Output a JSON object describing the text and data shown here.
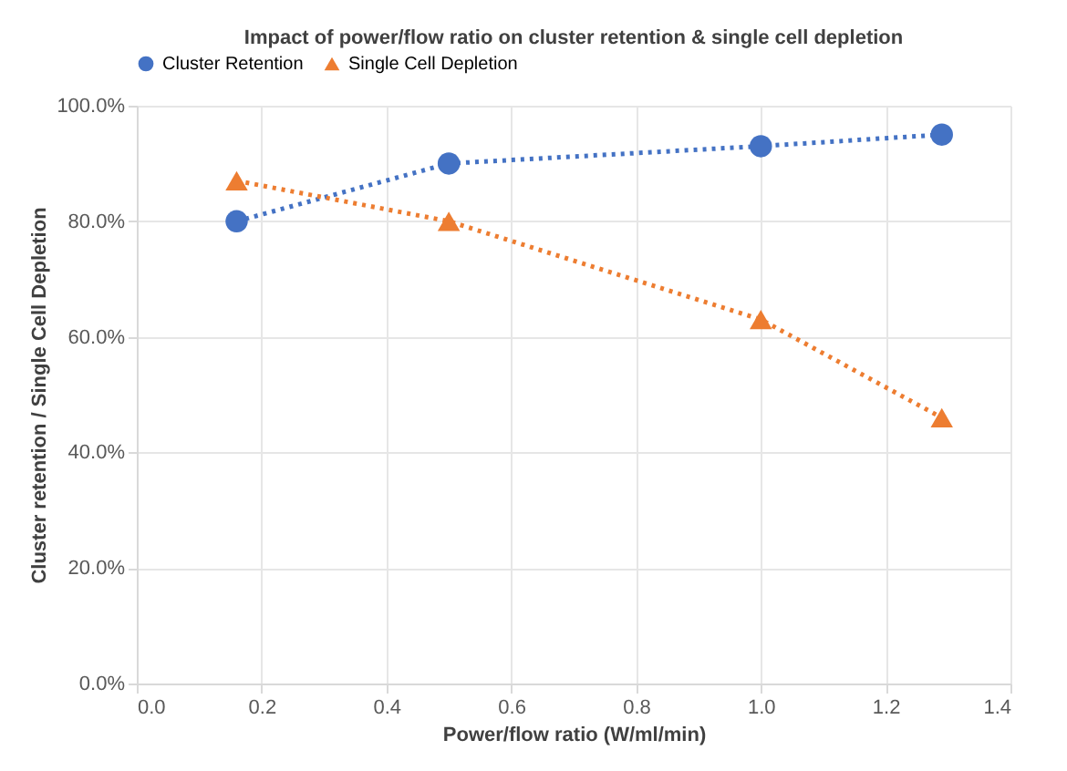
{
  "chart_data": {
    "type": "line",
    "title": "Impact of power/flow ratio on cluster retention & single cell depletion",
    "xlabel": "Power/flow ratio (W/ml/min)",
    "ylabel": "Cluster retention / Single Cell Depletion",
    "x": [
      0.16,
      0.5,
      1.0,
      1.29
    ],
    "series": [
      {
        "name": "Cluster Retention",
        "color": "#4472c4",
        "marker": "circle",
        "values": [
          80,
          90,
          93,
          95
        ]
      },
      {
        "name": "Single Cell Depletion",
        "color": "#ed7d31",
        "marker": "triangle",
        "values": [
          87,
          80,
          63,
          46
        ]
      }
    ],
    "xlim": [
      0,
      1.4
    ],
    "xticks": [
      {
        "value": 0,
        "label": "0.0"
      },
      0.2,
      0.4,
      0.6,
      0.8,
      {
        "value": 1,
        "label": "1.0"
      },
      1.2,
      1.4
    ],
    "ylim": [
      0,
      100
    ],
    "yticks": [
      {
        "value": 0,
        "label": "0.0%"
      },
      {
        "value": 20,
        "label": "20.0%"
      },
      {
        "value": 40,
        "label": "40.0%"
      },
      {
        "value": 60,
        "label": "60.0%"
      },
      {
        "value": 80,
        "label": "80.0%"
      },
      {
        "value": 100,
        "label": "100.0%"
      }
    ],
    "grid": true,
    "legend": "top",
    "line_style": "dotted"
  }
}
